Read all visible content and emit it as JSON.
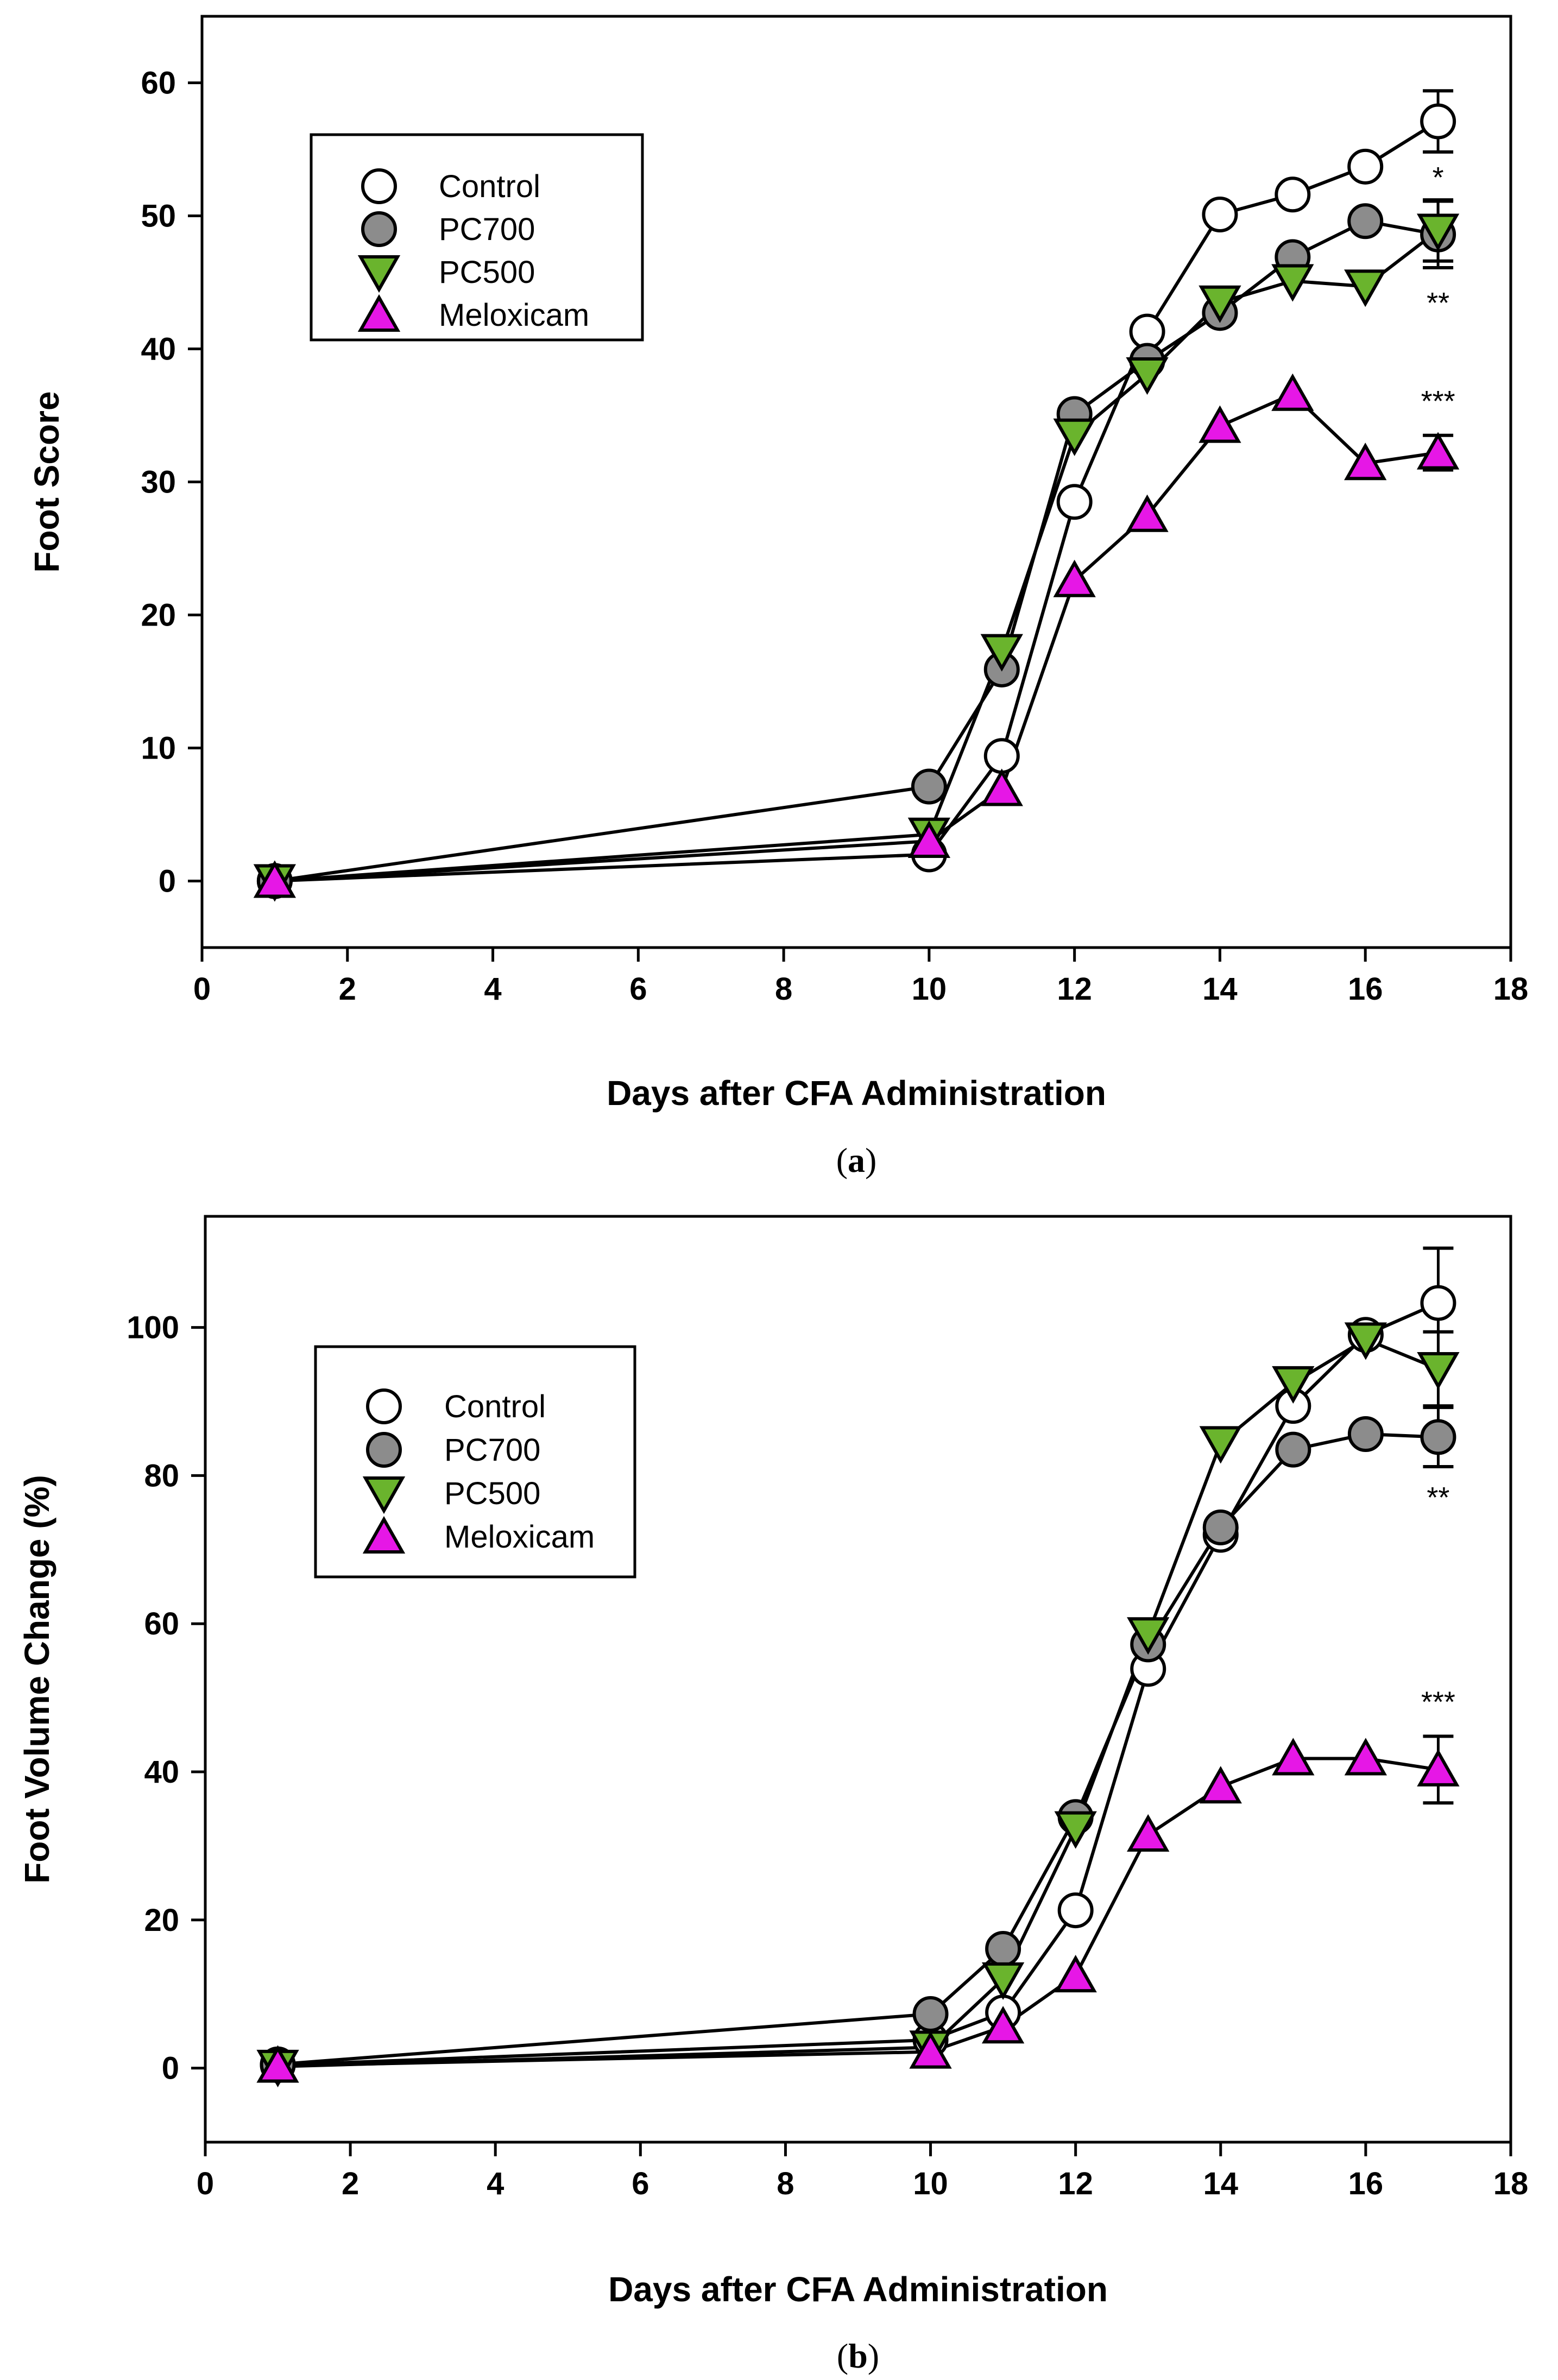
{
  "chart_data": [
    {
      "type": "line",
      "panel_label": "a",
      "caption_open": "(",
      "caption_close": ")",
      "xlabel": "Days after CFA Administration",
      "ylabel": "Foot Score",
      "xlim": [
        0,
        18
      ],
      "ylim": [
        -5,
        65
      ],
      "xticks": [
        0,
        2,
        4,
        6,
        8,
        10,
        12,
        14,
        16,
        18
      ],
      "yticks": [
        0,
        10,
        20,
        30,
        40,
        50,
        60
      ],
      "legend_position": "top-left",
      "x": [
        1,
        10,
        11,
        12,
        13,
        14,
        15,
        16,
        17
      ],
      "series": [
        {
          "name": "Control",
          "marker": "circle",
          "color": "#ffffff",
          "values": [
            0,
            2,
            9.4,
            28.5,
            41.3,
            50.1,
            51.6,
            53.7,
            57.1
          ],
          "error_last": 2.3,
          "sig": "*"
        },
        {
          "name": "PC700",
          "marker": "circle",
          "color": "#8c8c8c",
          "values": [
            0,
            7.1,
            15.9,
            35.1,
            39.1,
            42.7,
            46.9,
            49.6,
            48.6
          ],
          "error_last": 2.5,
          "sig": ""
        },
        {
          "name": "PC500",
          "marker": "triangle-down",
          "color": "#6ab42d",
          "values": [
            0,
            3.5,
            17.3,
            33.5,
            38.1,
            43.5,
            45.1,
            44.7,
            48.9
          ],
          "error_last": 2.3,
          "sig": "**"
        },
        {
          "name": "Meloxicam",
          "marker": "triangle-up",
          "color": "#e617e6",
          "values": [
            0,
            3,
            6.9,
            22.6,
            27.5,
            34.2,
            36.6,
            31.4,
            32.2
          ],
          "error_last": 1.3,
          "sig": "***"
        }
      ]
    },
    {
      "type": "line",
      "panel_label": "b",
      "caption_open": "(",
      "caption_close": ")",
      "xlabel": "Days after CFA Administration",
      "ylabel": "Foot Volume Change (%)",
      "xlim": [
        0,
        18
      ],
      "ylim": [
        -10,
        115
      ],
      "xticks": [
        0,
        2,
        4,
        6,
        8,
        10,
        12,
        14,
        16,
        18
      ],
      "yticks": [
        0,
        20,
        40,
        60,
        80,
        100
      ],
      "legend_position": "top-left",
      "x": [
        1,
        10,
        11,
        12,
        13,
        14,
        15,
        16,
        17
      ],
      "series": [
        {
          "name": "Control",
          "marker": "circle",
          "color": "#ffffff",
          "values": [
            0.4,
            3.8,
            7.5,
            21.3,
            53.9,
            72,
            89.4,
            99,
            103.3
          ],
          "error_last": 7.4,
          "sig": ""
        },
        {
          "name": "PC700",
          "marker": "circle",
          "color": "#8c8c8c",
          "values": [
            0.5,
            7.3,
            16.1,
            33.9,
            57.2,
            73,
            83.5,
            85.6,
            85.2
          ],
          "error_last": 4,
          "sig": "**"
        },
        {
          "name": "PC500",
          "marker": "triangle-down",
          "color": "#6ab42d",
          "values": [
            0.2,
            2.8,
            12,
            32.4,
            58.6,
            84.4,
            92.5,
            98.4,
            94.4
          ],
          "error_last": 5,
          "sig": ""
        },
        {
          "name": "Meloxicam",
          "marker": "triangle-up",
          "color": "#e617e6",
          "values": [
            0.3,
            2.2,
            5.6,
            12.5,
            31.5,
            38,
            41.8,
            41.8,
            40.3
          ],
          "error_last": 4.5,
          "sig": "***"
        }
      ]
    }
  ]
}
